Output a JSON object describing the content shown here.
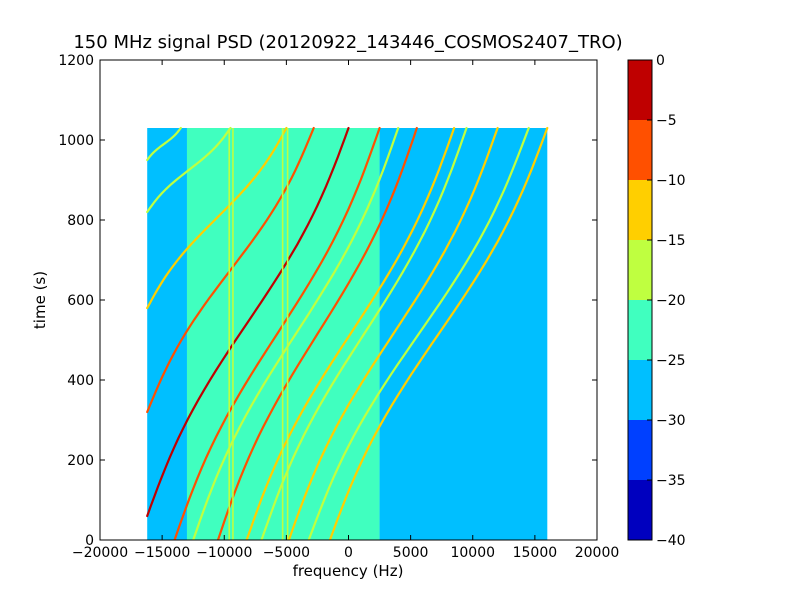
{
  "chart_data": {
    "type": "heatmap",
    "title": "150 MHz signal PSD (20120922_143446_COSMOS2407_TRO)",
    "xlabel": "frequency (Hz)",
    "ylabel": "time (s)",
    "xlim": [
      -20000,
      20000
    ],
    "ylim": [
      0,
      1200
    ],
    "x_ticks": [
      -20000,
      -15000,
      -10000,
      -5000,
      0,
      5000,
      10000,
      15000,
      20000
    ],
    "x_tick_labels": [
      "−20000",
      "−15000",
      "−10000",
      "−5000",
      "0",
      "5000",
      "10000",
      "15000",
      "20000"
    ],
    "y_ticks": [
      0,
      200,
      400,
      600,
      800,
      1000,
      1200
    ],
    "y_tick_labels": [
      "0",
      "200",
      "400",
      "600",
      "800",
      "1000",
      "1200"
    ],
    "data_extent": {
      "x": [
        -16200,
        16000
      ],
      "y": [
        0,
        1030
      ]
    },
    "background_levels": [
      {
        "x": [
          -16200,
          -13000
        ],
        "level": -25
      },
      {
        "x": [
          -13000,
          2500
        ],
        "level": -22
      },
      {
        "x": [
          2500,
          16000
        ],
        "level": -27
      }
    ],
    "colorbar": {
      "levels": [
        -40,
        -35,
        -30,
        -25,
        -20,
        -15,
        -10,
        -5,
        0
      ],
      "tick_labels": [
        "−40",
        "−35",
        "−30",
        "−25",
        "−20",
        "−15",
        "−10",
        "−5",
        "0"
      ],
      "colors": [
        "#0000bf",
        "#0040ff",
        "#00bfff",
        "#40ffbf",
        "#bfff40",
        "#ffcf00",
        "#ff5000",
        "#bf0000"
      ]
    },
    "traces": [
      {
        "x0": 16000,
        "x1": -1500,
        "y0": 1030,
        "y1": 0,
        "level": -12
      },
      {
        "x0": 14500,
        "x1": -3200,
        "y0": 1030,
        "y1": 0,
        "level": -15
      },
      {
        "x0": 12000,
        "x1": -4800,
        "y0": 1030,
        "y1": 0,
        "level": -12
      },
      {
        "x0": 9500,
        "x1": -7000,
        "y0": 1030,
        "y1": 0,
        "level": -15
      },
      {
        "x0": 8500,
        "x1": -8200,
        "y0": 1030,
        "y1": 0,
        "level": -10
      },
      {
        "x0": 5500,
        "x1": -10500,
        "y0": 1030,
        "y1": 0,
        "level": -8
      },
      {
        "x0": 4000,
        "x1": -12500,
        "y0": 1030,
        "y1": 0,
        "level": -15
      },
      {
        "x0": 2500,
        "x1": -14000,
        "y0": 1030,
        "y1": 0,
        "level": -5
      },
      {
        "x0": 0,
        "x1": -16200,
        "y0": 1030,
        "y1": 60,
        "level": -3
      },
      {
        "x0": -2800,
        "x1": -16200,
        "y0": 1030,
        "y1": 320,
        "level": -8
      },
      {
        "x0": -5000,
        "x1": -16200,
        "y0": 1030,
        "y1": 580,
        "level": -12
      },
      {
        "x0": -9500,
        "x1": -16200,
        "y0": 1030,
        "y1": 820,
        "level": -15
      },
      {
        "x0": -13500,
        "x1": -16200,
        "y0": 1030,
        "y1": 950,
        "level": -15
      }
    ],
    "vertical_lines": [
      {
        "x": -9600,
        "level": -18
      },
      {
        "x": -9300,
        "level": -15
      },
      {
        "x": -5300,
        "level": -15
      },
      {
        "x": -4900,
        "level": -18
      }
    ]
  }
}
